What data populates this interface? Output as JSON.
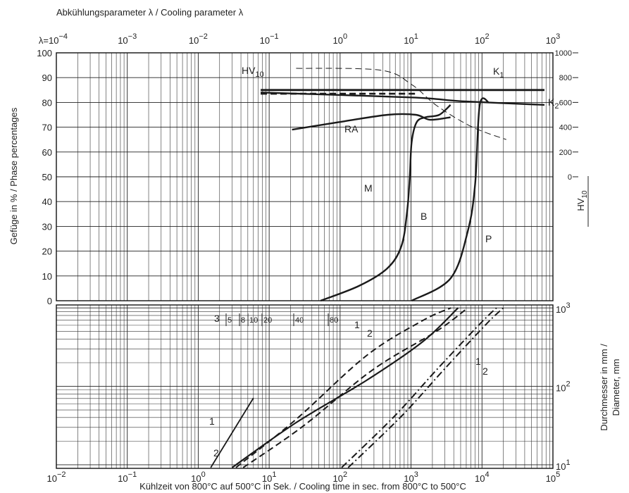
{
  "chart_data": [
    {
      "type": "line",
      "title": "Abkühlungsparameter λ / Cooling parameter λ",
      "ylabel": "Gefüge in % / Phase percentages",
      "y2label": "HV",
      "y2label_sub": "10",
      "log_x": true,
      "grid": true,
      "xlim": [
        0.01,
        100000
      ],
      "x2lim": [
        0.0001,
        1000
      ],
      "x2ticks": [
        {
          "value": 0.0001,
          "label": "λ=10",
          "exponent": "−4"
        },
        {
          "value": 0.001,
          "label": "10",
          "exponent": "−3"
        },
        {
          "value": 0.01,
          "label": "10",
          "exponent": "−2"
        },
        {
          "value": 0.1,
          "label": "10",
          "exponent": "−1"
        },
        {
          "value": 1,
          "label": "10",
          "exponent": "0"
        },
        {
          "value": 10,
          "label": "10",
          "exponent": "1"
        },
        {
          "value": 100,
          "label": "10",
          "exponent": "2"
        },
        {
          "value": 1000,
          "label": "10",
          "exponent": "3"
        }
      ],
      "minor_grid": [
        2,
        3,
        4,
        5,
        6,
        7,
        8,
        9
      ],
      "ylim": [
        0,
        100
      ],
      "yticks": [
        0,
        10,
        20,
        30,
        40,
        50,
        60,
        70,
        80,
        90,
        100
      ],
      "y2lim": [
        -1000,
        1000
      ],
      "y2ticks": [
        0,
        200,
        400,
        600,
        800,
        1000
      ],
      "series": [
        {
          "color": "#1a1a1a",
          "style": "solid",
          "width": 2.4,
          "x": [
            21,
            94,
            468,
            1170,
            1850,
            3600
          ],
          "values": [
            69,
            72,
            75,
            75,
            73,
            74
          ]
        },
        {
          "color": "#1a1a1a",
          "style": "solid",
          "width": 2.4,
          "x": [
            53,
            185,
            460,
            730,
            880,
            960,
            1020,
            1200,
            1600,
            2500,
            3600
          ],
          "values": [
            0,
            6,
            13,
            22,
            36,
            50,
            64,
            72,
            74,
            75,
            79
          ]
        },
        {
          "color": "#1a1a1a",
          "style": "solid",
          "width": 2.4,
          "x": [
            1020,
            3600,
            6300,
            8000,
            9300,
            12500
          ],
          "values": [
            0,
            9,
            28,
            47,
            79,
            80
          ]
        },
        {
          "color": "#1a1a1a",
          "style": "solid",
          "width": 2.8,
          "x": [
            7.6,
            76000
          ],
          "values": [
            85,
            85
          ]
        },
        {
          "color": "#1a1a1a",
          "style": "dashed",
          "width": 2.6,
          "x": [
            7.6,
            1200
          ],
          "values": [
            83.5,
            83.5
          ]
        },
        {
          "color": "#1a1a1a",
          "style": "solid",
          "width": 2.4,
          "x": [
            7.6,
            1000,
            5000,
            76000
          ],
          "values": [
            84,
            82,
            80.5,
            79
          ]
        },
        {
          "color": "#1a1a1a",
          "style": "dashed",
          "width": 1,
          "axis": "y2",
          "x": [
            24,
            370,
            1020,
            2300,
            7200,
            22000
          ],
          "values": [
            875,
            860,
            744,
            574,
            403,
            300
          ]
        }
      ],
      "annotations": [
        {
          "text": "HV",
          "sub": "10"
        },
        {
          "text": "K",
          "sub": "1"
        },
        {
          "text": "K",
          "sub": "2"
        },
        {
          "text": "RA"
        },
        {
          "text": "M"
        },
        {
          "text": "B"
        },
        {
          "text": "P"
        }
      ]
    },
    {
      "type": "line",
      "xlabel": "Kühlzeit von 800°C auf 500°C in Sek. / Cooling time in sec. from 800°C to 500°C",
      "ylabel": [
        "Durchmesser in mm /",
        "Diameter, mm"
      ],
      "log_x": true,
      "log_y": true,
      "grid": true,
      "xlim": [
        0.01,
        100000
      ],
      "xticks": [
        {
          "value": 0.01,
          "label": "10",
          "exponent": "−2"
        },
        {
          "value": 0.1,
          "label": "10",
          "exponent": "−1"
        },
        {
          "value": 1,
          "label": "10",
          "exponent": "0"
        },
        {
          "value": 10,
          "label": "10",
          "exponent": "1"
        },
        {
          "value": 100,
          "label": "10",
          "exponent": "2"
        },
        {
          "value": 1000,
          "label": "10",
          "exponent": "3"
        },
        {
          "value": 10000,
          "label": "10",
          "exponent": "4"
        },
        {
          "value": 100000,
          "label": "10",
          "exponent": "5"
        }
      ],
      "minor_grid": [
        2,
        3,
        4,
        5,
        6,
        7,
        8,
        9
      ],
      "ylim": [
        9,
        1090
      ],
      "yticks": [
        {
          "value": 10,
          "label": "10",
          "exponent": "1"
        },
        {
          "value": 100,
          "label": "10",
          "exponent": "2"
        },
        {
          "value": 1000,
          "label": "10",
          "exponent": "3"
        }
      ],
      "scale": [
        5,
        8,
        10,
        20,
        40,
        80
      ],
      "series": [
        {
          "color": "#1a1a1a",
          "style": "solid",
          "width": 1.8,
          "x": [
            1.5,
            6
          ],
          "values": [
            9.2,
            71
          ]
        },
        {
          "color": "#1a1a1a",
          "style": "solid",
          "width": 2.2,
          "x": [
            3,
            24,
            235,
            1460,
            4600
          ],
          "values": [
            9.2,
            34.5,
            119,
            371,
            1000
          ]
        },
        {
          "color": "#1a1a1a",
          "style": "dashed",
          "width": 2,
          "x": [
            3.4,
            24,
            235,
            1460,
            3650
          ],
          "values": [
            9.2,
            38,
            246,
            690,
            1000
          ]
        },
        {
          "color": "#1a1a1a",
          "style": "dashed",
          "width": 2,
          "x": [
            4.3,
            30,
            290,
            2300,
            6300
          ],
          "values": [
            9.2,
            31,
            163,
            506,
            1000
          ]
        },
        {
          "color": "#1a1a1a",
          "style": "dashdot",
          "width": 2,
          "x": [
            105,
            590,
            2300,
            9300,
            16000
          ],
          "values": [
            9.2,
            42,
            163,
            622,
            1000
          ]
        },
        {
          "color": "#1a1a1a",
          "style": "dashdot",
          "width": 2,
          "x": [
            130,
            740,
            2900,
            11500,
            20000
          ],
          "values": [
            9.2,
            42,
            163,
            622,
            1000
          ]
        }
      ],
      "annotations": [
        {
          "text": "1"
        },
        {
          "text": "2"
        },
        {
          "text": "1"
        },
        {
          "text": "2"
        },
        {
          "text": "1"
        },
        {
          "text": "2"
        },
        {
          "text": "3"
        }
      ]
    }
  ]
}
